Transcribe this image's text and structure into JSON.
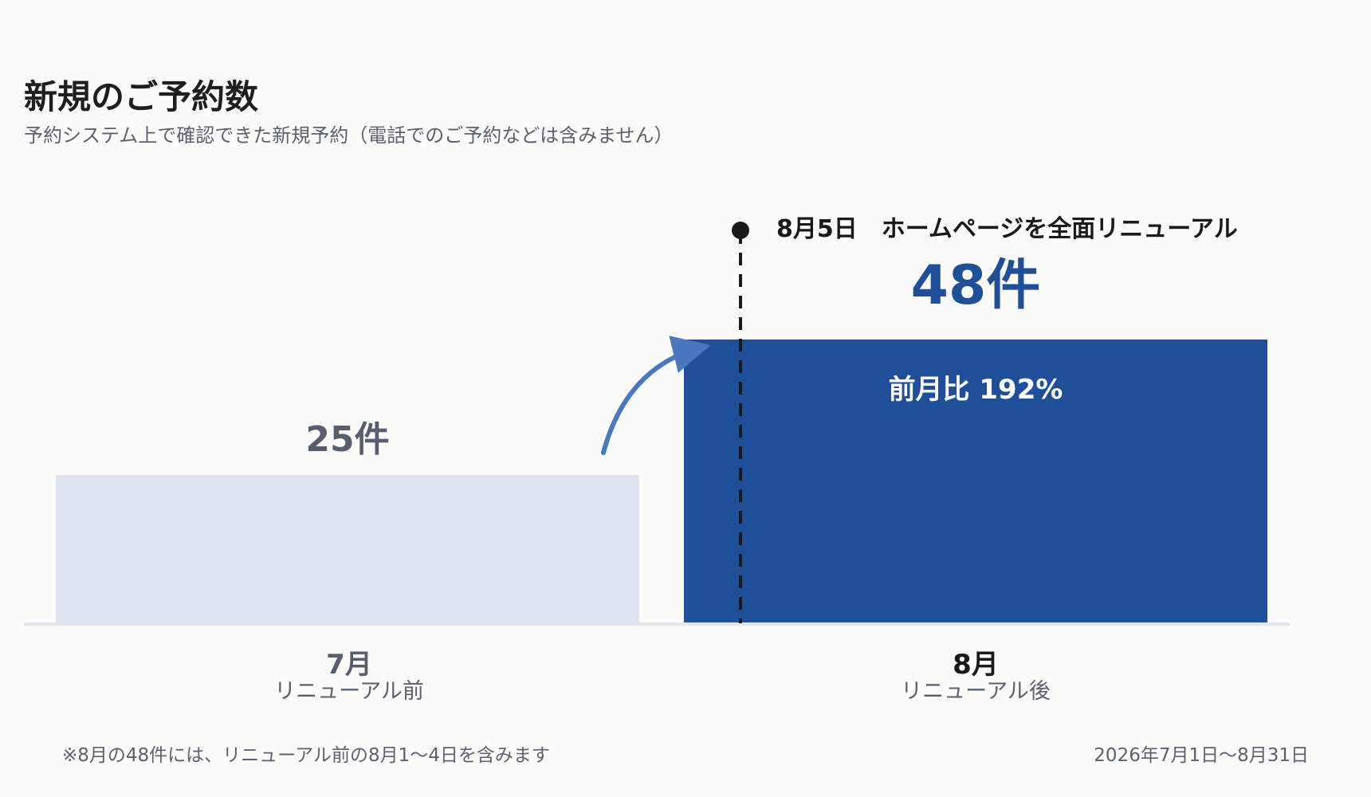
{
  "chart_data": {
    "type": "bar",
    "title": "新規のご予約数",
    "subtitle": "予約システム上で確認できた新規予約（電話でのご予約などは含みません）",
    "categories": [
      "7月",
      "8月"
    ],
    "category_sublabels": [
      "リニューアル前",
      "リニューアル後"
    ],
    "values": [
      25,
      48
    ],
    "value_labels": [
      "25件",
      "48件"
    ],
    "ratio_label": "前月比 192%",
    "event": {
      "label": "8月5日　ホームページを全面リニューアル",
      "date": "8月5日"
    },
    "ylim": [
      0,
      48
    ],
    "grid": false,
    "colors": {
      "before": "#dfe5f0",
      "after": "#1e4f98",
      "arrow": "#4a78bf",
      "event_line": "#1a1a1a"
    },
    "footnote": "※8月の48件には、リニューアル前の8月1〜4日を含みます",
    "period": "2026年7月1日〜8月31日"
  }
}
